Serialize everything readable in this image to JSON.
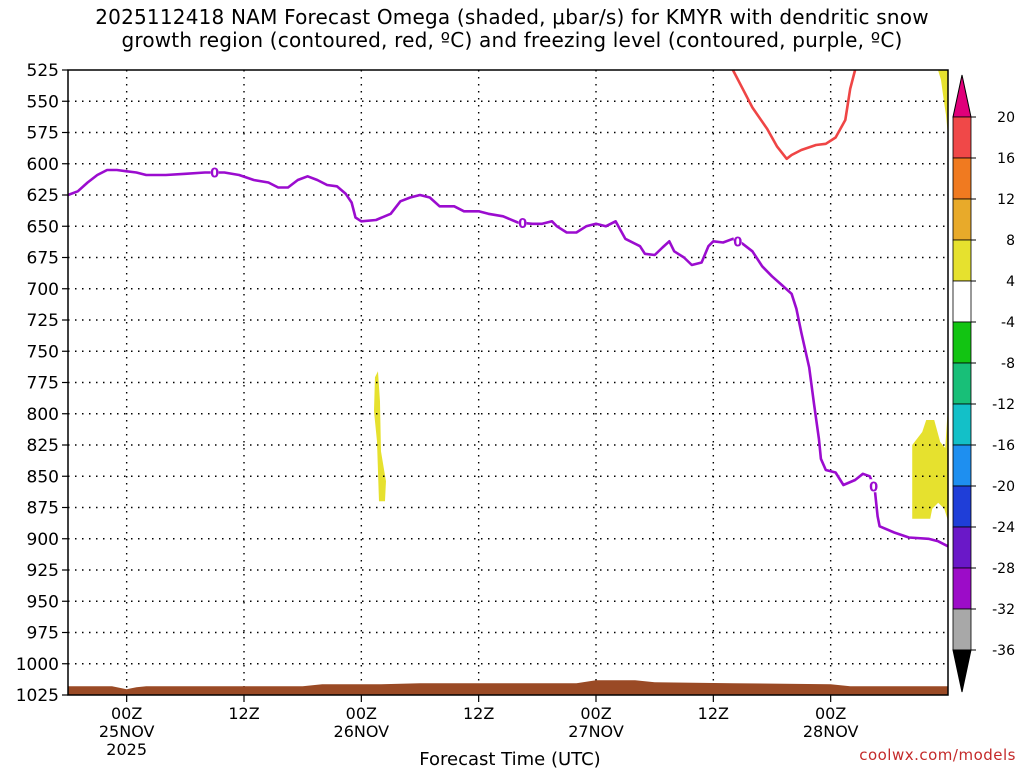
{
  "chart_data": {
    "type": "heatmap",
    "title_line1": "2025112418 NAM Forecast Omega (shaded, μbar/s) for KMYR with dendritic snow",
    "title_line2": "growth region (contoured, red, ºC) and freezing level (contoured, purple, ºC)",
    "xlabel": "Forecast Time (UTC)",
    "credit": "coolwx.com/models",
    "y_axis": {
      "scale": "pressure (hPa), inverted",
      "ylim": [
        1025,
        525
      ],
      "ticks": [
        525,
        550,
        575,
        600,
        625,
        650,
        675,
        700,
        725,
        750,
        775,
        800,
        825,
        850,
        875,
        900,
        925,
        950,
        975,
        1000,
        1025
      ]
    },
    "x_axis": {
      "range_hours": [
        -6,
        84
      ],
      "ticks": [
        {
          "hour": 0,
          "label": "00Z",
          "sub1": "25NOV",
          "sub2": "2025"
        },
        {
          "hour": 12,
          "label": "12Z",
          "sub1": "",
          "sub2": ""
        },
        {
          "hour": 24,
          "label": "00Z",
          "sub1": "26NOV",
          "sub2": ""
        },
        {
          "hour": 36,
          "label": "12Z",
          "sub1": "",
          "sub2": ""
        },
        {
          "hour": 48,
          "label": "00Z",
          "sub1": "27NOV",
          "sub2": ""
        },
        {
          "hour": 60,
          "label": "12Z",
          "sub1": "",
          "sub2": ""
        },
        {
          "hour": 72,
          "label": "00Z",
          "sub1": "28NOV",
          "sub2": ""
        }
      ]
    },
    "grid": true,
    "colorbar": {
      "units": "μbar/s",
      "labels": [
        "20",
        "16",
        "12",
        "8",
        "4",
        "-4",
        "-8",
        "-12",
        "-16",
        "-20",
        "-24",
        "-28",
        "-32",
        "-36"
      ],
      "bins": [
        {
          "min": 20,
          "max": null,
          "color": "#e0007a"
        },
        {
          "min": 16,
          "max": 20,
          "color": "#f04848"
        },
        {
          "min": 12,
          "max": 16,
          "color": "#f07a20"
        },
        {
          "min": 8,
          "max": 12,
          "color": "#e8aa2a"
        },
        {
          "min": 4,
          "max": 8,
          "color": "#e6e12e"
        },
        {
          "min": -4,
          "max": 4,
          "color": "#ffffff"
        },
        {
          "min": -8,
          "max": -4,
          "color": "#12c412"
        },
        {
          "min": -12,
          "max": -8,
          "color": "#18bf78"
        },
        {
          "min": -16,
          "max": -12,
          "color": "#13c0c8"
        },
        {
          "min": -20,
          "max": -16,
          "color": "#1e8ff0"
        },
        {
          "min": -24,
          "max": -20,
          "color": "#1f3ed8"
        },
        {
          "min": -28,
          "max": -24,
          "color": "#6a18c8"
        },
        {
          "min": -32,
          "max": -28,
          "color": "#9c0cc8"
        },
        {
          "min": -36,
          "max": -32,
          "color": "#a8a8a8"
        },
        {
          "min": null,
          "max": -36,
          "color": "#000000"
        }
      ]
    },
    "series": [
      {
        "color": "#9b0ccf",
        "contour_label": "0",
        "points": [
          [
            -6.0,
            625
          ],
          [
            -5.0,
            622
          ],
          [
            -4.0,
            615
          ],
          [
            -3.0,
            609
          ],
          [
            -2.0,
            605
          ],
          [
            -1.0,
            605
          ],
          [
            0.0,
            606
          ],
          [
            1.0,
            607
          ],
          [
            2.0,
            609
          ],
          [
            4.0,
            609
          ],
          [
            6.0,
            608
          ],
          [
            8.0,
            607
          ],
          [
            10.0,
            607
          ],
          [
            11.5,
            609
          ],
          [
            13.0,
            613
          ],
          [
            14.5,
            615
          ],
          [
            15.5,
            619
          ],
          [
            16.5,
            619
          ],
          [
            17.5,
            613
          ],
          [
            18.5,
            610
          ],
          [
            19.5,
            613
          ],
          [
            20.5,
            617
          ],
          [
            21.5,
            618
          ],
          [
            22.4,
            624
          ],
          [
            23.0,
            631
          ],
          [
            23.4,
            643
          ],
          [
            24.0,
            646
          ],
          [
            25.5,
            645
          ],
          [
            27.0,
            640
          ],
          [
            28.0,
            630
          ],
          [
            29.0,
            627
          ],
          [
            30.0,
            625
          ],
          [
            31.0,
            627
          ],
          [
            32.0,
            634
          ],
          [
            33.5,
            634
          ],
          [
            34.5,
            638
          ],
          [
            36.0,
            638
          ],
          [
            37.0,
            640
          ],
          [
            38.5,
            642
          ],
          [
            40.0,
            647
          ],
          [
            41.5,
            648
          ],
          [
            42.5,
            648
          ],
          [
            43.5,
            646
          ],
          [
            44.0,
            650
          ],
          [
            45.0,
            655
          ],
          [
            46.0,
            655
          ],
          [
            47.0,
            650
          ],
          [
            48.0,
            648
          ],
          [
            49.0,
            650
          ],
          [
            50.0,
            646
          ],
          [
            51.0,
            660
          ],
          [
            52.5,
            666
          ],
          [
            53.0,
            672
          ],
          [
            54.0,
            673
          ],
          [
            54.8,
            667
          ],
          [
            55.5,
            662
          ],
          [
            56.0,
            670
          ],
          [
            57.0,
            675
          ],
          [
            57.8,
            681
          ],
          [
            58.8,
            679
          ],
          [
            59.5,
            666
          ],
          [
            60.0,
            662
          ],
          [
            61.0,
            663
          ],
          [
            62.0,
            660
          ],
          [
            63.0,
            664
          ],
          [
            64.0,
            670
          ],
          [
            65.0,
            682
          ],
          [
            66.0,
            690
          ],
          [
            67.0,
            697
          ],
          [
            68.0,
            704
          ],
          [
            68.5,
            716
          ],
          [
            69.0,
            735
          ],
          [
            69.8,
            763
          ],
          [
            70.3,
            792
          ],
          [
            70.8,
            820
          ],
          [
            71.0,
            836
          ],
          [
            71.5,
            845
          ],
          [
            72.5,
            847
          ],
          [
            73.3,
            857
          ],
          [
            74.5,
            853
          ],
          [
            75.3,
            848
          ],
          [
            76.0,
            850
          ],
          [
            76.5,
            860
          ],
          [
            76.8,
            882
          ],
          [
            77.0,
            890
          ],
          [
            78.5,
            895
          ],
          [
            80.0,
            899
          ],
          [
            82.0,
            900
          ],
          [
            83.0,
            902
          ],
          [
            84.0,
            906
          ]
        ]
      },
      {
        "color": "#ef4545",
        "points": [
          [
            62.0,
            525
          ],
          [
            63.0,
            540
          ],
          [
            64.0,
            555
          ],
          [
            65.5,
            572
          ],
          [
            66.5,
            586
          ],
          [
            67.5,
            596
          ],
          [
            68.0,
            593
          ],
          [
            69.0,
            589
          ],
          [
            70.5,
            585
          ],
          [
            71.5,
            584
          ],
          [
            72.5,
            579
          ],
          [
            73.5,
            565
          ],
          [
            74.0,
            540
          ],
          [
            74.5,
            525
          ]
        ]
      }
    ],
    "shaded_regions": [
      {
        "value_range": [
          4,
          8
        ],
        "hour_center": 25.6,
        "p_top": 766,
        "p_bottom": 870
      },
      {
        "value_range": [
          4,
          8
        ],
        "hour_center": 83.0,
        "p_top": 805,
        "p_bottom": 884
      },
      {
        "value_range": [
          4,
          8
        ],
        "hour_center": 84.0,
        "p_top": 525,
        "p_bottom": 578
      }
    ],
    "terrain": {
      "color": "#9a4a25",
      "surface_pressure": 1018
    }
  }
}
